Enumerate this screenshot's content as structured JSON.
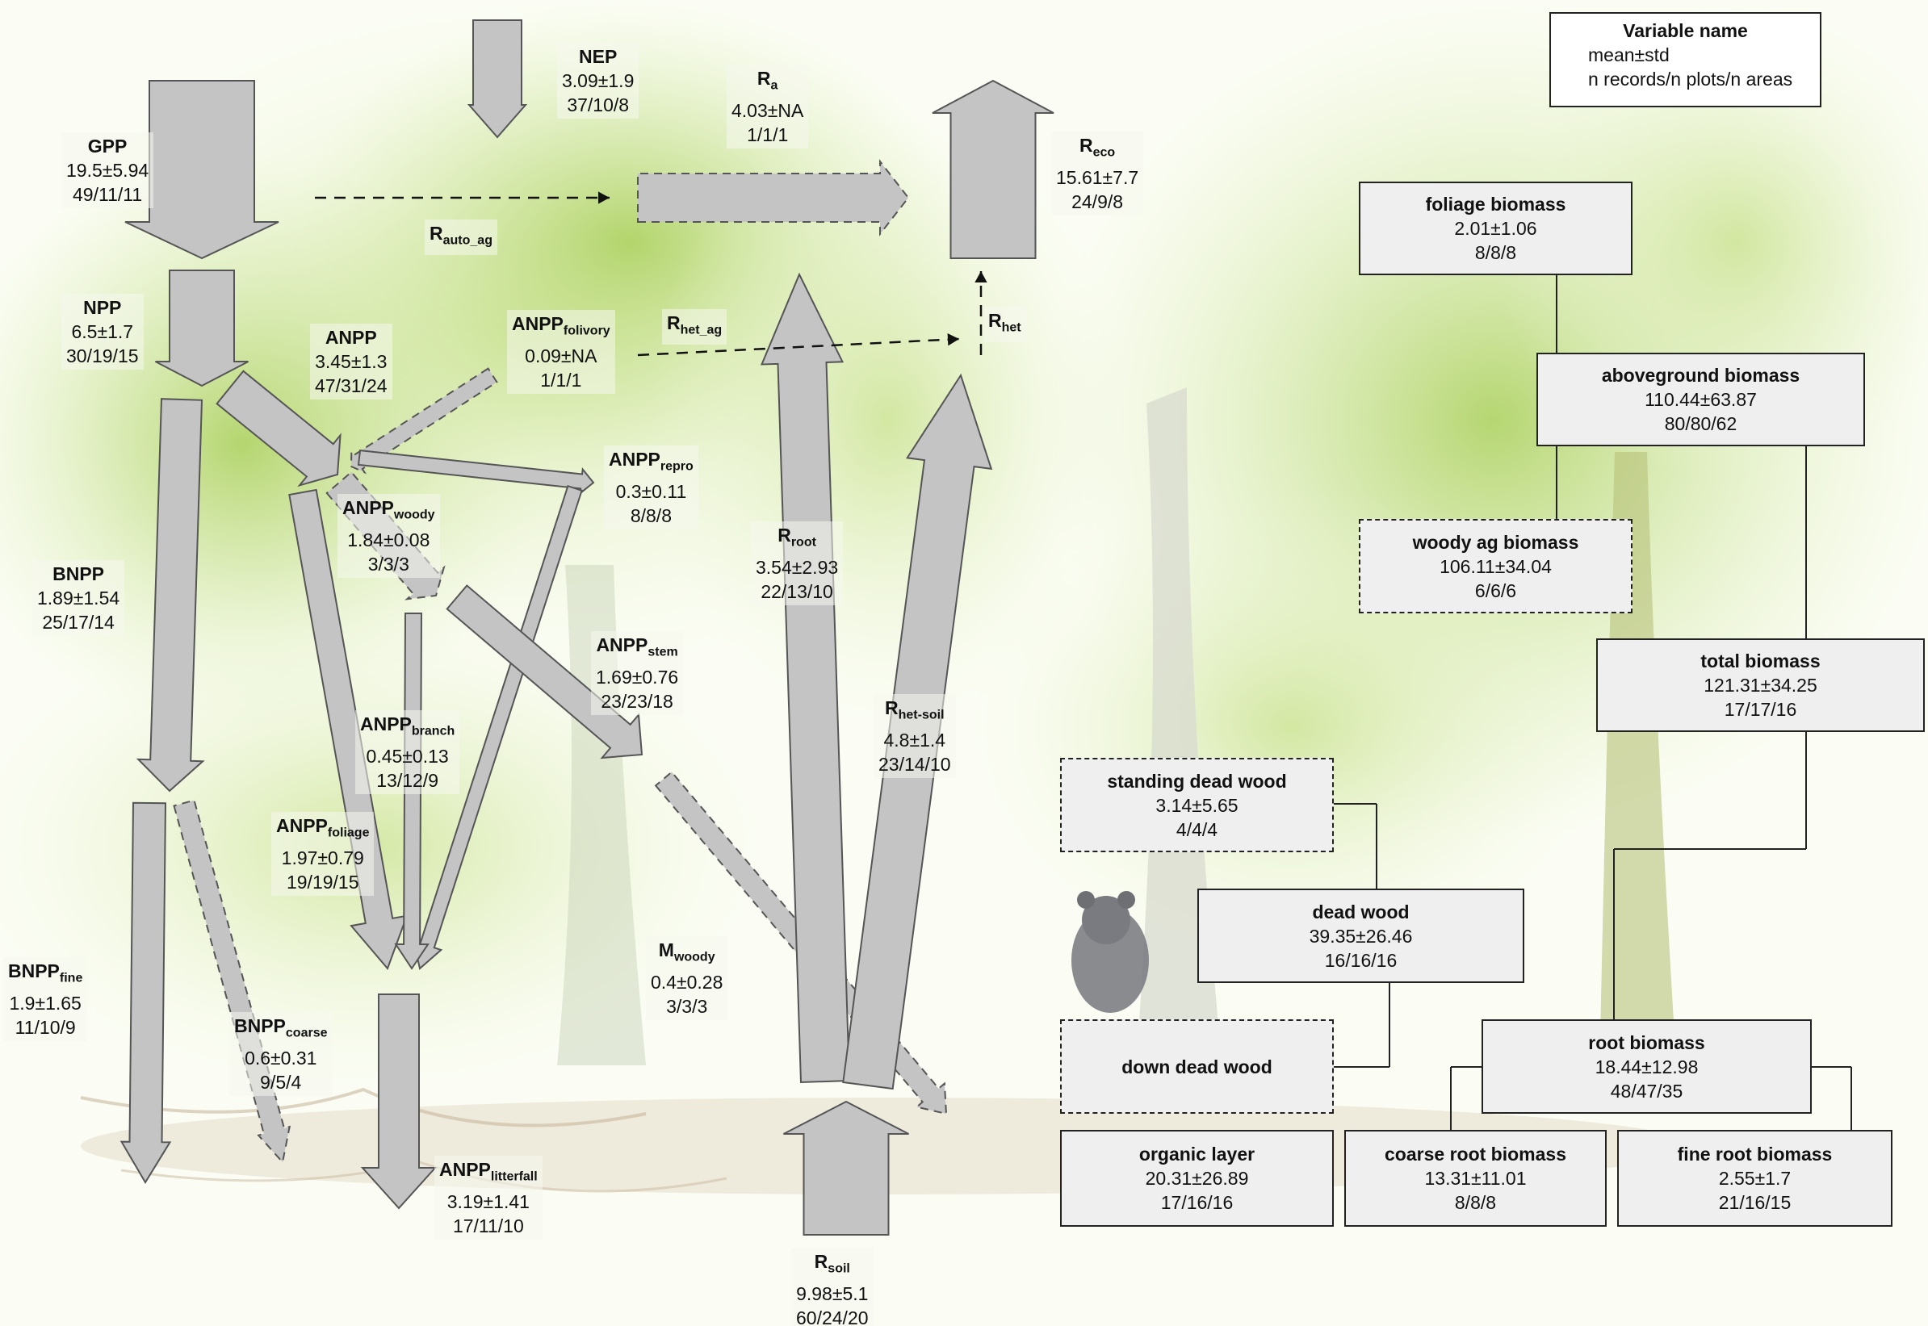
{
  "legend": {
    "title": "Variable name",
    "line1": "mean±std",
    "line2": "n records/n plots/n areas"
  },
  "fluxes": {
    "gpp": {
      "name": "GPP",
      "sub": "",
      "mean": "19.5±5.94",
      "n": "49/11/11"
    },
    "nep": {
      "name": "NEP",
      "sub": "",
      "mean": "3.09±1.9",
      "n": "37/10/8"
    },
    "ra": {
      "name": "R",
      "sub": "a",
      "mean": "4.03±NA",
      "n": "1/1/1"
    },
    "reco": {
      "name": "R",
      "sub": "eco",
      "mean": "15.61±7.7",
      "n": "24/9/8"
    },
    "rautoag": {
      "name": "R",
      "sub": "auto_ag"
    },
    "npp": {
      "name": "NPP",
      "sub": "",
      "mean": "6.5±1.7",
      "n": "30/19/15"
    },
    "anpp": {
      "name": "ANPP",
      "sub": "",
      "mean": "3.45±1.3",
      "n": "47/31/24"
    },
    "anppfolivory": {
      "name": "ANPP",
      "sub": "folivory",
      "mean": "0.09±NA",
      "n": "1/1/1"
    },
    "rhetag": {
      "name": "R",
      "sub": "het_ag"
    },
    "rhet": {
      "name": "R",
      "sub": "het"
    },
    "anpprepro": {
      "name": "ANPP",
      "sub": "repro",
      "mean": "0.3±0.11",
      "n": "8/8/8"
    },
    "anppwoody": {
      "name": "ANPP",
      "sub": "woody",
      "mean": "1.84±0.08",
      "n": "3/3/3"
    },
    "rroot": {
      "name": "R",
      "sub": "root",
      "mean": "3.54±2.93",
      "n": "22/13/10"
    },
    "bnpp": {
      "name": "BNPP",
      "sub": "",
      "mean": "1.89±1.54",
      "n": "25/17/14"
    },
    "anppstem": {
      "name": "ANPP",
      "sub": "stem",
      "mean": "1.69±0.76",
      "n": "23/23/18"
    },
    "rhetsoil": {
      "name": "R",
      "sub": "het-soil",
      "mean": "4.8±1.4",
      "n": "23/14/10"
    },
    "anppbranch": {
      "name": "ANPP",
      "sub": "branch",
      "mean": "0.45±0.13",
      "n": "13/12/9"
    },
    "anppfoliage": {
      "name": "ANPP",
      "sub": "foliage",
      "mean": "1.97±0.79",
      "n": "19/19/15"
    },
    "mwoody": {
      "name": "M",
      "sub": "woody",
      "mean": "0.4±0.28",
      "n": "3/3/3"
    },
    "bnppfine": {
      "name": "BNPP",
      "sub": "fine",
      "mean": "1.9±1.65",
      "n": "11/10/9"
    },
    "bnppcoarse": {
      "name": "BNPP",
      "sub": "coarse",
      "mean": "0.6±0.31",
      "n": "9/5/4"
    },
    "anpplitter": {
      "name": "ANPP",
      "sub": "litterfall",
      "mean": "3.19±1.41",
      "n": "17/11/10"
    },
    "rsoil": {
      "name": "R",
      "sub": "soil",
      "mean": "9.98±5.1",
      "n": "60/24/20"
    }
  },
  "stocks": {
    "foliage": {
      "name": "foliage biomass",
      "mean": "2.01±1.06",
      "n": "8/8/8"
    },
    "aboveground": {
      "name": "aboveground biomass",
      "mean": "110.44±63.87",
      "n": "80/80/62"
    },
    "woodyag": {
      "name": "woody ag biomass",
      "mean": "106.11±34.04",
      "n": "6/6/6"
    },
    "total": {
      "name": "total biomass",
      "mean": "121.31±34.25",
      "n": "17/17/16"
    },
    "standingdead": {
      "name": "standing dead wood",
      "mean": "3.14±5.65",
      "n": "4/4/4"
    },
    "deadwood": {
      "name": "dead wood",
      "mean": "39.35±26.46",
      "n": "16/16/16"
    },
    "downdead": {
      "name": "down dead wood"
    },
    "root": {
      "name": "root biomass",
      "mean": "18.44±12.98",
      "n": "48/47/35"
    },
    "organic": {
      "name": "organic layer",
      "mean": "20.31±26.89",
      "n": "17/16/16"
    },
    "coarseroot": {
      "name": "coarse root biomass",
      "mean": "13.31±11.01",
      "n": "8/8/8"
    },
    "fineroot": {
      "name": "fine root biomass",
      "mean": "2.55±1.7",
      "n": "21/16/15"
    }
  },
  "colors": {
    "arrow_fill": "#c4c4c4",
    "arrow_stroke": "#555555",
    "box_fill": "#efefef",
    "foliage_green": "#b8d57a"
  }
}
